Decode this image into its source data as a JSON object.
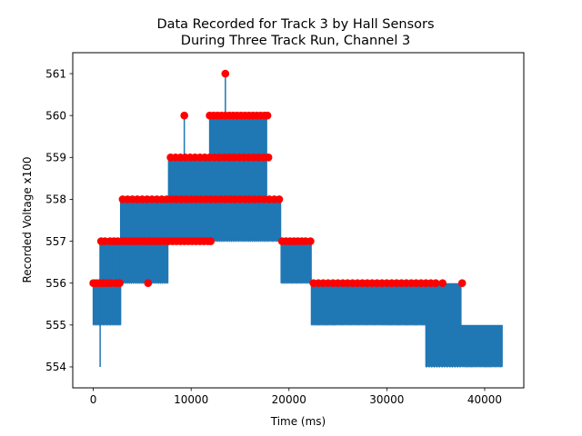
{
  "chart_data": {
    "type": "line",
    "title_line1": "Data Recorded for Track 3 by Hall Sensors",
    "title_line2": "During Three Track Run, Channel 3",
    "xlabel": "Time (ms)",
    "ylabel": "Recorded Voltage x100",
    "xlim": [
      -2100,
      44000
    ],
    "ylim": [
      553.5,
      561.5
    ],
    "x_ticks": [
      0,
      10000,
      20000,
      30000,
      40000
    ],
    "y_ticks": [
      554,
      555,
      556,
      557,
      558,
      559,
      560,
      561
    ],
    "grid": false,
    "line_color": "#1f77b4",
    "marker_color": "#ff0000",
    "segments": [
      {
        "x0": 0,
        "x1": 700,
        "low": 555,
        "high": 556,
        "pulses": 7
      },
      {
        "x0": 700,
        "x1": 2000,
        "low": 555,
        "high": 557,
        "pulses": 10
      },
      {
        "x0": 2000,
        "x1": 2800,
        "low": 555,
        "high": 557,
        "pulses": 30
      },
      {
        "x0": 2800,
        "x1": 7700,
        "low": 556,
        "high": 558,
        "pulses": 28
      },
      {
        "x0": 7700,
        "x1": 11900,
        "low": 557,
        "high": 559,
        "pulses": 26
      },
      {
        "x0": 11900,
        "x1": 17800,
        "low": 557,
        "high": 560,
        "pulses": 30
      },
      {
        "x0": 17800,
        "x1": 19200,
        "low": 557,
        "high": 558,
        "pulses": 12
      },
      {
        "x0": 19200,
        "x1": 22300,
        "low": 556,
        "high": 557,
        "pulses": 40
      },
      {
        "x0": 22300,
        "x1": 34000,
        "low": 555,
        "high": 556,
        "pulses": 140
      },
      {
        "x0": 34000,
        "x1": 37700,
        "low": 554,
        "high": 556,
        "pulses": 14
      },
      {
        "x0": 37700,
        "x1": 41800,
        "low": 554,
        "high": 555,
        "pulses": 80
      }
    ],
    "spikes": [
      {
        "x": 700,
        "low": 554,
        "high": 557
      },
      {
        "x": 9300,
        "low": 558,
        "high": 560
      },
      {
        "x": 13500,
        "low": 558,
        "high": 561
      }
    ],
    "markers": [
      {
        "x": 0,
        "y": 556
      },
      {
        "x": 300,
        "y": 556
      },
      {
        "x": 600,
        "y": 556
      },
      {
        "x": 1000,
        "y": 556
      },
      {
        "x": 1400,
        "y": 556
      },
      {
        "x": 1800,
        "y": 556
      },
      {
        "x": 2300,
        "y": 556
      },
      {
        "x": 2700,
        "y": 556
      },
      {
        "x": 5600,
        "y": 556
      },
      {
        "x": 800,
        "y": 557
      },
      {
        "x": 1200,
        "y": 557
      },
      {
        "x": 1700,
        "y": 557
      },
      {
        "x": 2100,
        "y": 557
      },
      {
        "x": 2500,
        "y": 557
      },
      {
        "x": 2900,
        "y": 557
      },
      {
        "x": 3300,
        "y": 557
      },
      {
        "x": 3700,
        "y": 557
      },
      {
        "x": 4100,
        "y": 557
      },
      {
        "x": 4500,
        "y": 557
      },
      {
        "x": 4900,
        "y": 557
      },
      {
        "x": 5300,
        "y": 557
      },
      {
        "x": 5700,
        "y": 557
      },
      {
        "x": 6100,
        "y": 557
      },
      {
        "x": 6500,
        "y": 557
      },
      {
        "x": 6900,
        "y": 557
      },
      {
        "x": 7300,
        "y": 557
      },
      {
        "x": 7700,
        "y": 557
      },
      {
        "x": 8100,
        "y": 557
      },
      {
        "x": 8500,
        "y": 557
      },
      {
        "x": 8900,
        "y": 557
      },
      {
        "x": 9300,
        "y": 557
      },
      {
        "x": 9700,
        "y": 557
      },
      {
        "x": 10100,
        "y": 557
      },
      {
        "x": 10500,
        "y": 557
      },
      {
        "x": 10900,
        "y": 557
      },
      {
        "x": 11300,
        "y": 557
      },
      {
        "x": 11700,
        "y": 557
      },
      {
        "x": 12000,
        "y": 557
      },
      {
        "x": 3000,
        "y": 558
      },
      {
        "x": 3500,
        "y": 558
      },
      {
        "x": 4000,
        "y": 558
      },
      {
        "x": 4500,
        "y": 558
      },
      {
        "x": 5000,
        "y": 558
      },
      {
        "x": 5500,
        "y": 558
      },
      {
        "x": 6000,
        "y": 558
      },
      {
        "x": 6500,
        "y": 558
      },
      {
        "x": 7000,
        "y": 558
      },
      {
        "x": 7500,
        "y": 558
      },
      {
        "x": 8000,
        "y": 558
      },
      {
        "x": 8500,
        "y": 558
      },
      {
        "x": 9000,
        "y": 558
      },
      {
        "x": 9500,
        "y": 558
      },
      {
        "x": 10000,
        "y": 558
      },
      {
        "x": 10500,
        "y": 558
      },
      {
        "x": 11000,
        "y": 558
      },
      {
        "x": 11500,
        "y": 558
      },
      {
        "x": 12000,
        "y": 558
      },
      {
        "x": 12500,
        "y": 558
      },
      {
        "x": 13000,
        "y": 558
      },
      {
        "x": 13500,
        "y": 558
      },
      {
        "x": 14000,
        "y": 558
      },
      {
        "x": 14500,
        "y": 558
      },
      {
        "x": 15000,
        "y": 558
      },
      {
        "x": 15500,
        "y": 558
      },
      {
        "x": 16000,
        "y": 558
      },
      {
        "x": 16500,
        "y": 558
      },
      {
        "x": 17000,
        "y": 558
      },
      {
        "x": 17500,
        "y": 558
      },
      {
        "x": 18000,
        "y": 558
      },
      {
        "x": 18500,
        "y": 558
      },
      {
        "x": 19000,
        "y": 558
      },
      {
        "x": 7900,
        "y": 559
      },
      {
        "x": 8400,
        "y": 559
      },
      {
        "x": 8900,
        "y": 559
      },
      {
        "x": 9400,
        "y": 559
      },
      {
        "x": 9900,
        "y": 559
      },
      {
        "x": 10400,
        "y": 559
      },
      {
        "x": 10900,
        "y": 559
      },
      {
        "x": 11400,
        "y": 559
      },
      {
        "x": 11900,
        "y": 559
      },
      {
        "x": 12400,
        "y": 559
      },
      {
        "x": 12900,
        "y": 559
      },
      {
        "x": 13400,
        "y": 559
      },
      {
        "x": 13900,
        "y": 559
      },
      {
        "x": 14400,
        "y": 559
      },
      {
        "x": 14900,
        "y": 559
      },
      {
        "x": 15400,
        "y": 559
      },
      {
        "x": 15900,
        "y": 559
      },
      {
        "x": 16400,
        "y": 559
      },
      {
        "x": 16900,
        "y": 559
      },
      {
        "x": 17400,
        "y": 559
      },
      {
        "x": 17900,
        "y": 559
      },
      {
        "x": 9300,
        "y": 560
      },
      {
        "x": 11900,
        "y": 560
      },
      {
        "x": 12300,
        "y": 560
      },
      {
        "x": 12700,
        "y": 560
      },
      {
        "x": 13100,
        "y": 560
      },
      {
        "x": 13500,
        "y": 560
      },
      {
        "x": 13900,
        "y": 560
      },
      {
        "x": 14300,
        "y": 560
      },
      {
        "x": 14700,
        "y": 560
      },
      {
        "x": 15100,
        "y": 560
      },
      {
        "x": 15500,
        "y": 560
      },
      {
        "x": 15900,
        "y": 560
      },
      {
        "x": 16300,
        "y": 560
      },
      {
        "x": 16700,
        "y": 560
      },
      {
        "x": 17100,
        "y": 560
      },
      {
        "x": 17500,
        "y": 560
      },
      {
        "x": 17800,
        "y": 560
      },
      {
        "x": 13500,
        "y": 561
      },
      {
        "x": 19300,
        "y": 557
      },
      {
        "x": 19700,
        "y": 557
      },
      {
        "x": 20100,
        "y": 557
      },
      {
        "x": 20500,
        "y": 557
      },
      {
        "x": 20900,
        "y": 557
      },
      {
        "x": 21300,
        "y": 557
      },
      {
        "x": 21700,
        "y": 557
      },
      {
        "x": 22200,
        "y": 557
      },
      {
        "x": 22500,
        "y": 556
      },
      {
        "x": 23000,
        "y": 556
      },
      {
        "x": 23500,
        "y": 556
      },
      {
        "x": 24000,
        "y": 556
      },
      {
        "x": 24500,
        "y": 556
      },
      {
        "x": 25000,
        "y": 556
      },
      {
        "x": 25500,
        "y": 556
      },
      {
        "x": 26000,
        "y": 556
      },
      {
        "x": 26500,
        "y": 556
      },
      {
        "x": 27000,
        "y": 556
      },
      {
        "x": 27500,
        "y": 556
      },
      {
        "x": 28000,
        "y": 556
      },
      {
        "x": 28500,
        "y": 556
      },
      {
        "x": 29000,
        "y": 556
      },
      {
        "x": 29500,
        "y": 556
      },
      {
        "x": 30000,
        "y": 556
      },
      {
        "x": 30500,
        "y": 556
      },
      {
        "x": 31000,
        "y": 556
      },
      {
        "x": 31500,
        "y": 556
      },
      {
        "x": 32000,
        "y": 556
      },
      {
        "x": 32500,
        "y": 556
      },
      {
        "x": 33000,
        "y": 556
      },
      {
        "x": 33500,
        "y": 556
      },
      {
        "x": 34000,
        "y": 556
      },
      {
        "x": 34500,
        "y": 556
      },
      {
        "x": 35000,
        "y": 556
      },
      {
        "x": 35700,
        "y": 556
      },
      {
        "x": 37700,
        "y": 556
      }
    ]
  }
}
